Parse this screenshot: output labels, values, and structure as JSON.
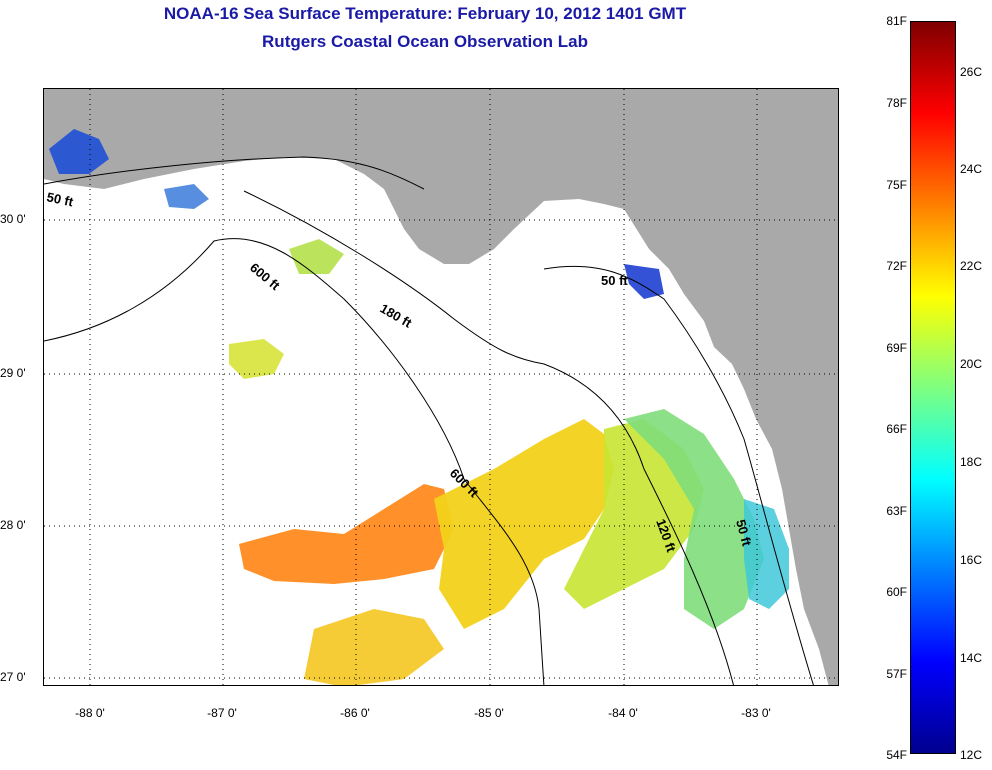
{
  "title": {
    "line1": "NOAA-16 Sea Surface Temperature:  February 10, 2012 1401 GMT",
    "line2": "Rutgers Coastal Ocean Observation Lab"
  },
  "map": {
    "land_color": "#a9a9a9",
    "water_color": "#ffffff",
    "latitude_ticks": [
      "30 0'",
      "29 0'",
      "28 0'",
      "27 0'"
    ],
    "longitude_ticks": [
      "-88 0'",
      "-87 0'",
      "-86 0'",
      "-85 0'",
      "-84 0'",
      "-83 0'"
    ],
    "contour_labels": [
      "50 ft",
      "600 ft",
      "180 ft",
      "50 ft",
      "600 ft",
      "120 ft",
      "50 ft"
    ]
  },
  "colorbar": {
    "fahrenheit": [
      "81F",
      "78F",
      "75F",
      "72F",
      "69F",
      "66F",
      "63F",
      "60F",
      "57F",
      "54F"
    ],
    "celsius": [
      "26C",
      "24C",
      "22C",
      "20C",
      "18C",
      "16C",
      "14C",
      "12C"
    ],
    "colors": [
      "#00008f",
      "#0000ff",
      "#007fff",
      "#00ffff",
      "#7fff7f",
      "#ffff00",
      "#ff7f00",
      "#ff0000",
      "#7f0000"
    ]
  }
}
